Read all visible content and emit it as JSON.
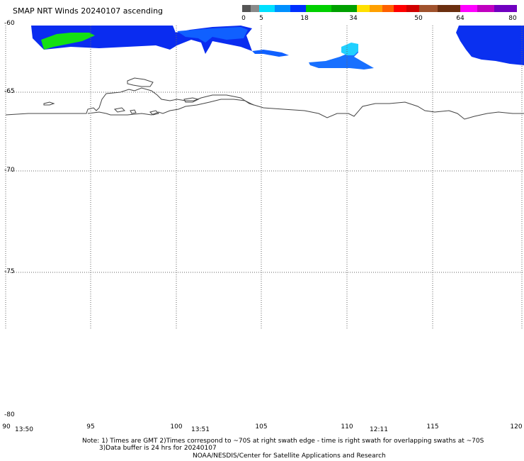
{
  "title": "SMAP NRT Winds 20240107 ascending",
  "colorbar": {
    "labels": [
      "0",
      "5",
      "18",
      "34",
      "50",
      "64",
      "80"
    ],
    "colors": [
      "#555555",
      "#7a7a7a",
      "#00c8ff",
      "#0080ff",
      "#0000ff",
      "#00c800",
      "#00a000",
      "#ffd700",
      "#ff8000",
      "#ff0000",
      "#d00000",
      "#8b4513",
      "#c07040",
      "#ff00ff",
      "#c000c0",
      "#8000ff"
    ]
  },
  "map": {
    "lat_labels": [
      "-60",
      "-65",
      "-70",
      "-75",
      "-80"
    ],
    "lon_labels": [
      "90",
      "95",
      "100",
      "105",
      "110",
      "115",
      "120"
    ],
    "times": [
      "13:50",
      "13:51",
      "12:11"
    ]
  },
  "notes": {
    "line1": "Note: 1) Times are GMT 2)Times correspond to ~70S at right swath edge - time is right swath for overlapping swaths at ~70S",
    "line2": "3)Data buffer is 24 hrs for 20240107",
    "line3": "NOAA/NESDIS/Center for Satellite Applications and Research"
  }
}
